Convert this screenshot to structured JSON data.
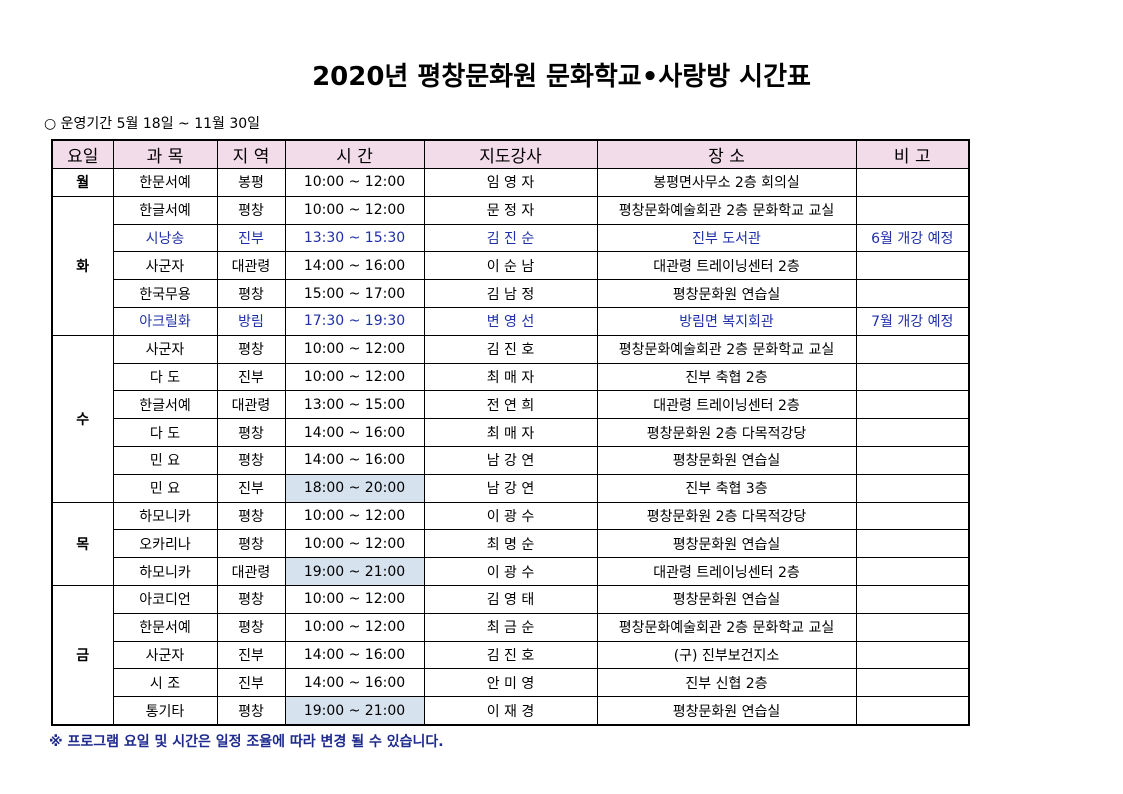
{
  "title": "2020년 평창문화원 문화학교•사랑방 시간표",
  "period": "○ 운영기간 5월 18일 ~ 11월 30일",
  "headers": [
    "요일",
    "과  목",
    "지 역",
    "시  간",
    "지도강사",
    "장    소",
    "비 고"
  ],
  "days": [
    {
      "day": "월",
      "rows": [
        {
          "subject": "한문서예",
          "region": "봉평",
          "time": "10:00 ~ 12:00",
          "teacher": "임 영 자",
          "place": "봉평면사무소 2층 회의실",
          "note": ""
        }
      ]
    },
    {
      "day": "화",
      "rows": [
        {
          "subject": "한글서예",
          "region": "평창",
          "time": "10:00 ~ 12:00",
          "teacher": "문 정 자",
          "place": "평창문화예술회관 2층 문화학교 교실",
          "note": ""
        },
        {
          "subject": "시낭송",
          "region": "진부",
          "time": "13:30 ~ 15:30",
          "teacher": "김 진 순",
          "place": "진부 도서관",
          "note": "6월 개강 예정",
          "blue": true
        },
        {
          "subject": "사군자",
          "region": "대관령",
          "time": "14:00 ~ 16:00",
          "teacher": "이 순 남",
          "place": "대관령 트레이닝센터 2층",
          "note": ""
        },
        {
          "subject": "한국무용",
          "region": "평창",
          "time": "15:00 ~ 17:00",
          "teacher": "김 남 정",
          "place": "평창문화원 연습실",
          "note": ""
        },
        {
          "subject": "아크릴화",
          "region": "방림",
          "time": "17:30 ~ 19:30",
          "teacher": "변 영 선",
          "place": "방림면 복지회관",
          "note": "7월 개강 예정",
          "blue": true
        }
      ]
    },
    {
      "day": "수",
      "rows": [
        {
          "subject": "사군자",
          "region": "평창",
          "time": "10:00 ~ 12:00",
          "teacher": "김 진 호",
          "place": "평창문화예술회관 2층 문화학교 교실",
          "note": ""
        },
        {
          "subject": "다 도",
          "region": "진부",
          "time": "10:00 ~ 12:00",
          "teacher": "최 매 자",
          "place": "진부 축협 2층",
          "note": ""
        },
        {
          "subject": "한글서예",
          "region": "대관령",
          "time": "13:00 ~ 15:00",
          "teacher": "전 연 희",
          "place": "대관령 트레이닝센터 2층",
          "note": ""
        },
        {
          "subject": "다 도",
          "region": "평창",
          "time": "14:00 ~ 16:00",
          "teacher": "최 매 자",
          "place": "평창문화원 2층 다목적강당",
          "note": ""
        },
        {
          "subject": "민 요",
          "region": "평창",
          "time": "14:00 ~ 16:00",
          "teacher": "남 강 연",
          "place": "평창문화원 연습실",
          "note": ""
        },
        {
          "subject": "민 요",
          "region": "진부",
          "time": "18:00 ~ 20:00",
          "teacher": "남 강 연",
          "place": "진부 축협 3층",
          "note": "",
          "hl": true
        }
      ]
    },
    {
      "day": "목",
      "rows": [
        {
          "subject": "하모니카",
          "region": "평창",
          "time": "10:00 ~ 12:00",
          "teacher": "이 광 수",
          "place": "평창문화원 2층 다목적강당",
          "note": ""
        },
        {
          "subject": "오카리나",
          "region": "평창",
          "time": "10:00 ~ 12:00",
          "teacher": "최 명 순",
          "place": "평창문화원 연습실",
          "note": ""
        },
        {
          "subject": "하모니카",
          "region": "대관령",
          "time": "19:00 ~ 21:00",
          "teacher": "이 광 수",
          "place": "대관령 트레이닝센터 2층",
          "note": "",
          "hl": true
        }
      ]
    },
    {
      "day": "금",
      "rows": [
        {
          "subject": "아코디언",
          "region": "평창",
          "time": "10:00 ~ 12:00",
          "teacher": "김 영 태",
          "place": "평창문화원 연습실",
          "note": ""
        },
        {
          "subject": "한문서예",
          "region": "평창",
          "time": "10:00 ~ 12:00",
          "teacher": "최 금 순",
          "place": "평창문화예술회관 2층 문화학교 교실",
          "note": ""
        },
        {
          "subject": "사군자",
          "region": "진부",
          "time": "14:00 ~ 16:00",
          "teacher": "김 진 호",
          "place": "(구) 진부보건지소",
          "note": ""
        },
        {
          "subject": "시 조",
          "region": "진부",
          "time": "14:00 ~ 16:00",
          "teacher": "안 미 영",
          "place": "진부 신협 2층",
          "note": ""
        },
        {
          "subject": "통기타",
          "region": "평창",
          "time": "19:00 ~ 21:00",
          "teacher": "이 재 경",
          "place": "평창문화원 연습실",
          "note": "",
          "hl": true
        }
      ]
    }
  ],
  "footnote": "※ 프로그램 요일 및 시간은 일정 조율에 따라 변경 될 수 있습니다."
}
